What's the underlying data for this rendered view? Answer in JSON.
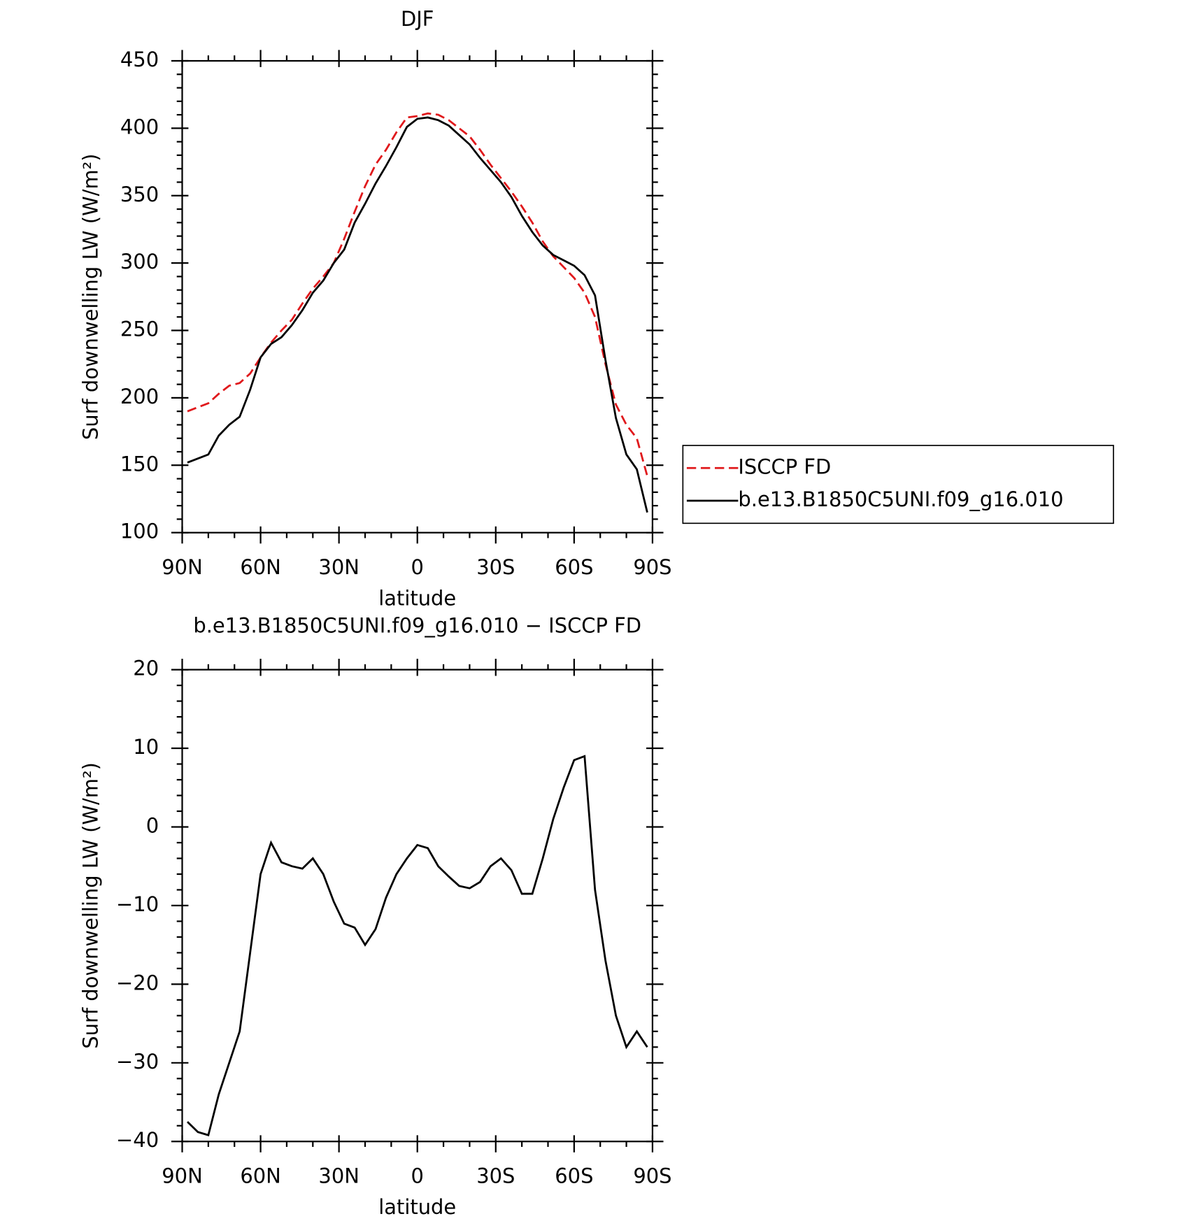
{
  "chart_data": [
    {
      "type": "line",
      "title": "DJF",
      "xlabel": "latitude",
      "ylabel": "Surf downwelling LW (W/m²)",
      "x": [
        88,
        84,
        80,
        76,
        72,
        68,
        64,
        60,
        56,
        52,
        48,
        44,
        40,
        36,
        32,
        28,
        24,
        20,
        16,
        12,
        8,
        4,
        0,
        -4,
        -8,
        -12,
        -16,
        -20,
        -24,
        -28,
        -32,
        -36,
        -40,
        -44,
        -48,
        -52,
        -56,
        -60,
        -64,
        -68,
        -72,
        -76,
        -80,
        -84,
        -88
      ],
      "series": [
        {
          "name": "ISCCP FD",
          "color": "#e0191c",
          "dash": true,
          "values": [
            190,
            193,
            196,
            203,
            209,
            211,
            218,
            230,
            241,
            250,
            258,
            270,
            281,
            290,
            300,
            318,
            338,
            357,
            373,
            384,
            397,
            408,
            409,
            411,
            410,
            406,
            400,
            394,
            384,
            373,
            363,
            353,
            342,
            330,
            316,
            305,
            297,
            289,
            278,
            260,
            225,
            195,
            180,
            170,
            142
          ]
        },
        {
          "name": "b.e13.B1850C5UNI.f09_g16.010",
          "color": "#000000",
          "dash": false,
          "values": [
            152,
            155,
            158,
            172,
            180,
            186,
            206,
            230,
            240,
            245,
            254,
            265,
            278,
            287,
            300,
            310,
            330,
            344,
            359,
            372,
            386,
            401,
            407,
            408,
            406,
            402,
            395,
            388,
            378,
            369,
            360,
            349,
            335,
            323,
            313,
            306,
            302,
            298,
            291,
            276,
            228,
            185,
            158,
            147,
            115
          ]
        }
      ],
      "xlim": [
        90,
        -90
      ],
      "xticks": [
        {
          "value": 90,
          "label": "90N"
        },
        {
          "value": 60,
          "label": "60N"
        },
        {
          "value": 30,
          "label": "30N"
        },
        0,
        {
          "value": -30,
          "label": "30S"
        },
        {
          "value": -60,
          "label": "60S"
        },
        {
          "value": -90,
          "label": "90S"
        }
      ],
      "ylim": [
        100,
        450
      ],
      "yticks": [
        100,
        150,
        200,
        250,
        300,
        350,
        400,
        450
      ],
      "legend": "right"
    },
    {
      "type": "line",
      "title": "b.e13.B1850C5UNI.f09_g16.010 − ISCCP FD",
      "xlabel": "latitude",
      "ylabel": "Surf downwelling LW (W/m²)",
      "x": [
        88,
        84,
        80,
        76,
        72,
        68,
        64,
        60,
        56,
        52,
        48,
        44,
        40,
        36,
        32,
        28,
        24,
        20,
        16,
        12,
        8,
        4,
        0,
        -4,
        -8,
        -12,
        -16,
        -20,
        -24,
        -28,
        -32,
        -36,
        -40,
        -44,
        -48,
        -52,
        -56,
        -60,
        -64,
        -68,
        -72,
        -76,
        -80,
        -84,
        -88
      ],
      "series": [
        {
          "color": "#000000",
          "dash": false,
          "values": [
            -37.5,
            -38.8,
            -39.2,
            -34,
            -30,
            -26,
            -16,
            -6,
            -2,
            -4.5,
            -5,
            -5.3,
            -4,
            -6,
            -9.5,
            -12.3,
            -12.8,
            -15,
            -13,
            -9,
            -6,
            -4,
            -2.3,
            -2.7,
            -5,
            -6.3,
            -7.5,
            -7.8,
            -7,
            -5,
            -4,
            -5.5,
            -8.5,
            -8.5,
            -4,
            1,
            5,
            8.5,
            9,
            -8,
            -17,
            -24,
            -28,
            -26,
            -28
          ]
        }
      ],
      "xlim": [
        90,
        -90
      ],
      "xticks": [
        {
          "value": 90,
          "label": "90N"
        },
        {
          "value": 60,
          "label": "60N"
        },
        {
          "value": 30,
          "label": "30N"
        },
        0,
        {
          "value": -30,
          "label": "30S"
        },
        {
          "value": -60,
          "label": "60S"
        },
        {
          "value": -90,
          "label": "90S"
        }
      ],
      "ylim": [
        -40,
        20
      ],
      "yticks": [
        {
          "value": -40,
          "label": "−40"
        },
        {
          "value": -30,
          "label": "−30"
        },
        {
          "value": -20,
          "label": "−20"
        },
        {
          "value": -10,
          "label": "−10"
        },
        0,
        10,
        20
      ]
    }
  ]
}
